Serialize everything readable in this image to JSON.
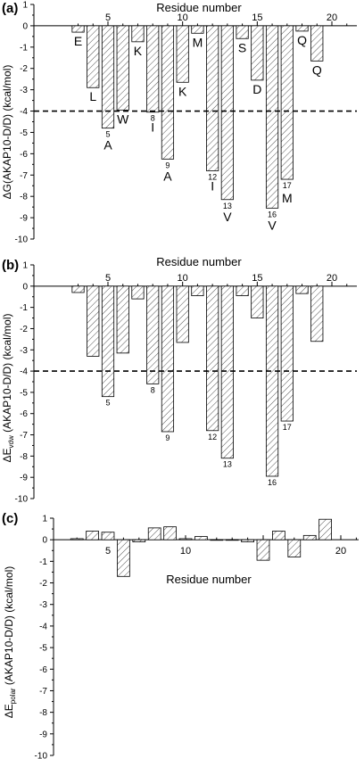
{
  "colors": {
    "axis": "#000000",
    "bar_stroke": "#000000",
    "hatch": "#555555",
    "threshold": "#000000"
  },
  "chart_data": [
    {
      "type": "bar",
      "panel": "(a)",
      "xlabel": "Residue number",
      "ylabel": "ΔG(AKAP10-D/D) (kcal/mol)",
      "x_ticks": [
        5,
        10,
        15,
        20
      ],
      "ylim": [
        -10,
        1
      ],
      "y_ticks": [
        1,
        0,
        -1,
        -2,
        -3,
        -4,
        -5,
        -6,
        -7,
        -8,
        -9,
        -10
      ],
      "threshold": -4,
      "residues": [
        3,
        4,
        5,
        6,
        7,
        8,
        9,
        10,
        11,
        12,
        13,
        14,
        15,
        16,
        17,
        18,
        19
      ],
      "values": [
        -0.3,
        -2.9,
        -4.8,
        -3.95,
        -0.75,
        -4.05,
        -6.25,
        -2.65,
        -0.35,
        -6.8,
        -8.15,
        -0.6,
        -2.55,
        -8.55,
        -7.2,
        -0.25,
        -1.65
      ],
      "amino_acids": [
        "E",
        "L",
        "A",
        "W",
        "K",
        "I",
        "A",
        "K",
        "M",
        "I",
        "V",
        "S",
        "D",
        "V",
        "M",
        "Q",
        "Q"
      ],
      "number_labels": [
        "",
        "",
        "5",
        "",
        "",
        "8",
        "9",
        "",
        "",
        "12",
        "13",
        "",
        "",
        "16",
        "17",
        "",
        ""
      ]
    },
    {
      "type": "bar",
      "panel": "(b)",
      "xlabel": "Residue number",
      "ylabel_main": "ΔE",
      "ylabel_sub": "vdw",
      "ylabel_rest": " (AKAP10-D/D) (kcal/mol)",
      "x_ticks": [
        5,
        10,
        15,
        20
      ],
      "ylim": [
        -10,
        1
      ],
      "y_ticks": [
        1,
        0,
        -1,
        -2,
        -3,
        -4,
        -5,
        -6,
        -7,
        -8,
        -9,
        -10
      ],
      "threshold": -4,
      "residues": [
        3,
        4,
        5,
        6,
        7,
        8,
        9,
        10,
        11,
        12,
        13,
        14,
        15,
        16,
        17,
        18,
        19
      ],
      "values": [
        -0.3,
        -3.3,
        -5.2,
        -3.15,
        -0.6,
        -4.6,
        -6.85,
        -2.65,
        -0.45,
        -6.8,
        -8.1,
        -0.45,
        -1.5,
        -8.95,
        -6.35,
        -0.35,
        -2.6
      ],
      "number_labels": [
        "",
        "",
        "5",
        "",
        "",
        "8",
        "9",
        "",
        "",
        "12",
        "13",
        "",
        "",
        "16",
        "17",
        "",
        ""
      ]
    },
    {
      "type": "bar",
      "panel": "(c)",
      "xlabel": "Residue number",
      "ylabel_main": "ΔE",
      "ylabel_sub": "polar",
      "ylabel_rest": " (AKAP10-D/D) (kcal/mol)",
      "x_ticks": [
        5,
        10,
        15,
        20
      ],
      "ylim": [
        -10,
        1
      ],
      "y_ticks": [
        1,
        0,
        -1,
        -2,
        -3,
        -4,
        -5,
        -6,
        -7,
        -8,
        -9,
        -10
      ],
      "residues": [
        3,
        4,
        5,
        6,
        7,
        8,
        9,
        10,
        11,
        12,
        13,
        14,
        15,
        16,
        17,
        18,
        19
      ],
      "values": [
        0.05,
        0.4,
        0.35,
        -1.7,
        -0.1,
        0.55,
        0.6,
        0.05,
        0.15,
        0.0,
        0.0,
        -0.1,
        -0.95,
        0.4,
        -0.8,
        0.2,
        0.95
      ]
    }
  ]
}
